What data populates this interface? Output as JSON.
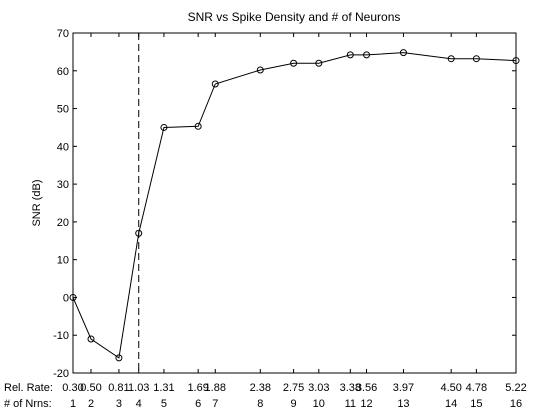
{
  "chart_data": {
    "type": "line",
    "title": "SNR vs Spike Density and # of Neurons",
    "xlabel": "",
    "ylabel": "SNR (dB)",
    "xlim": [
      0.3,
      5.22
    ],
    "ylim": [
      -20,
      70
    ],
    "y_ticks": [
      -20,
      -10,
      0,
      10,
      20,
      30,
      40,
      50,
      60,
      70
    ],
    "grid": false,
    "legend": "none",
    "line_color": "#000000",
    "marker": "open-circle",
    "vertical_reference_x": 1.03,
    "row_labels": {
      "rel_rate": "Rel. Rate:",
      "num_neurons": "# of Nrns:"
    },
    "x_tick_labels": [
      "0.30",
      "0.50",
      "0.81",
      "1.03",
      "1.31",
      "1.69",
      "1.88",
      "2.38",
      "2.75",
      "3.03",
      "3.38",
      "3.56",
      "3.97",
      "4.50",
      "4.78",
      "5.22"
    ],
    "x_ticks_neurons": [
      "1",
      "2",
      "3",
      "4",
      "5",
      "6",
      "7",
      "8",
      "9",
      "10",
      "11",
      "12",
      "13",
      "14",
      "15",
      "16"
    ],
    "series": [
      {
        "x": [
          0.3,
          0.5,
          0.81,
          1.03,
          1.31,
          1.69,
          1.88,
          2.38,
          2.75,
          3.03,
          3.38,
          3.56,
          3.97,
          4.5,
          4.78,
          5.22
        ],
        "values": [
          0,
          -11,
          -16,
          17,
          45,
          45.3,
          56.5,
          60.2,
          62,
          62,
          64.2,
          64.2,
          64.8,
          63.2,
          63.2,
          62.7
        ]
      }
    ]
  }
}
